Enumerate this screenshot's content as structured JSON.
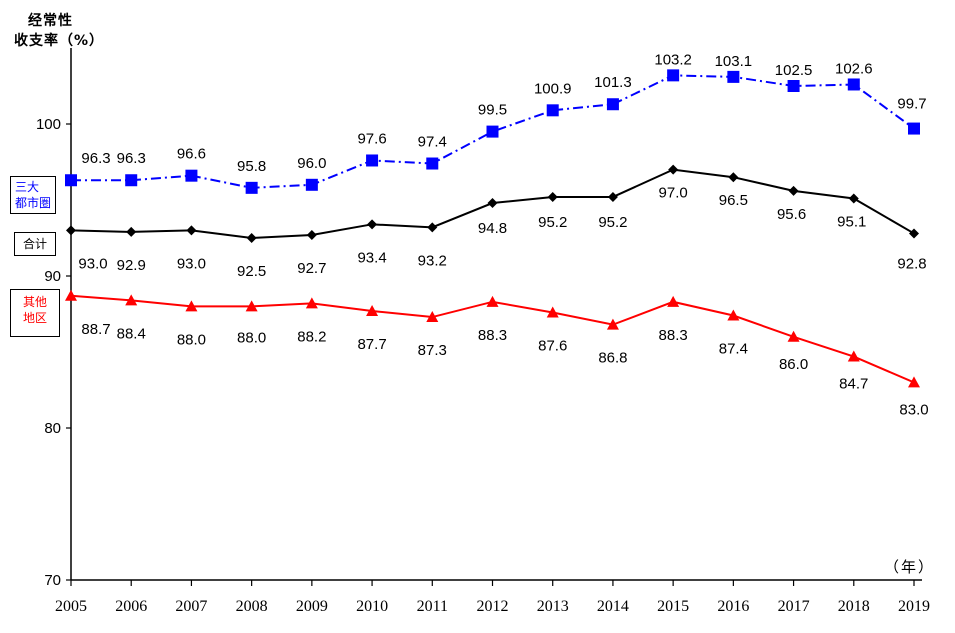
{
  "chart_data": {
    "type": "line",
    "ylabel_lines": [
      "经常性",
      "收支率（%）"
    ],
    "x_unit": "（年）",
    "categories": [
      "2005",
      "2006",
      "2007",
      "2008",
      "2009",
      "2010",
      "2011",
      "2012",
      "2013",
      "2014",
      "2015",
      "2016",
      "2017",
      "2018",
      "2019"
    ],
    "ylim": [
      70,
      105
    ],
    "yticks": [
      70,
      80,
      90,
      100
    ],
    "grid": false,
    "series": [
      {
        "name": "三大都市圏",
        "name_lines": [
          "三大",
          "都市圏"
        ],
        "color": "#0000ff",
        "line_style": "dash-dot",
        "marker": "square",
        "values": [
          96.3,
          96.3,
          96.6,
          95.8,
          96.0,
          97.6,
          97.4,
          99.5,
          100.9,
          101.3,
          103.2,
          103.1,
          102.5,
          102.6,
          99.7
        ],
        "labels": [
          "96.3",
          "96.3",
          "96.6",
          "95.8",
          "96.0",
          "97.6",
          "97.4",
          "99.5",
          "100.9",
          "101.3",
          "103.2",
          "103.1",
          "102.5",
          "102.6",
          "99.7"
        ]
      },
      {
        "name": "合计",
        "name_lines": [
          "合计"
        ],
        "color": "#000000",
        "line_style": "solid",
        "marker": "diamond",
        "values": [
          93.0,
          92.9,
          93.0,
          92.5,
          92.7,
          93.4,
          93.2,
          94.8,
          95.2,
          95.2,
          97.0,
          96.5,
          95.6,
          95.1,
          92.8
        ],
        "labels": [
          "93.0",
          "92.9",
          "93.0",
          "92.5",
          "92.7",
          "93.4",
          "93.2",
          "94.8",
          "95.2",
          "95.2",
          "97.0",
          "96.5",
          "95.6",
          "95.1",
          "92.8"
        ]
      },
      {
        "name": "其他地区",
        "name_lines": [
          "其他",
          "地区"
        ],
        "color": "#ff0000",
        "line_style": "solid",
        "marker": "triangle",
        "values": [
          88.7,
          88.4,
          88.0,
          88.0,
          88.2,
          87.7,
          87.3,
          88.3,
          87.6,
          86.8,
          88.3,
          87.4,
          86.0,
          84.7,
          83.0
        ],
        "labels": [
          "88.7",
          "88.4",
          "88.0",
          "88.0",
          "88.2",
          "87.7",
          "87.3",
          "88.3",
          "87.6",
          "86.8",
          "88.3",
          "87.4",
          "86.0",
          "84.7",
          "83.0"
        ]
      }
    ]
  }
}
